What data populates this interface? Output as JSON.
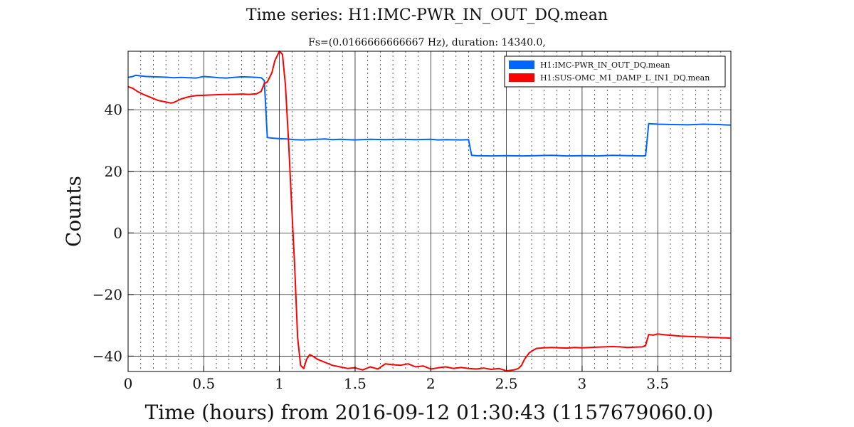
{
  "chart_data": {
    "type": "line",
    "title": "Time series:  H1:IMC-PWR_IN_OUT_DQ.mean",
    "subtitle": "Fs=(0.0166666666667 Hz), duration: 14340.0,",
    "xlabel": "Time (hours) from 2016-09-12 01:30:43 (1157679060.0)",
    "ylabel": "Counts",
    "xlim": [
      0,
      3.9833
    ],
    "ylim": [
      -45,
      59
    ],
    "x_ticks": [
      0,
      0.5,
      1,
      1.5,
      2,
      2.5,
      3,
      3.5
    ],
    "x_tick_labels": [
      "0",
      "0.5",
      "1",
      "1.5",
      "2",
      "2.5",
      "3",
      "3.5"
    ],
    "y_ticks": [
      -40,
      -20,
      0,
      20,
      40
    ],
    "y_tick_labels": [
      "−40",
      "−20",
      "0",
      "20",
      "40"
    ],
    "grid": true,
    "legend_position": "top-right",
    "series": [
      {
        "name": "H1:IMC-PWR_IN_OUT_DQ.mean",
        "color": "#0066ff",
        "x": [
          0,
          0.03,
          0.05,
          0.08,
          0.12,
          0.17,
          0.22,
          0.27,
          0.3,
          0.35,
          0.4,
          0.45,
          0.48,
          0.5,
          0.55,
          0.6,
          0.65,
          0.7,
          0.75,
          0.8,
          0.85,
          0.88,
          0.9,
          0.92,
          0.95,
          1.0,
          1.05,
          1.1,
          1.15,
          1.2,
          1.25,
          1.3,
          1.35,
          1.4,
          1.5,
          1.6,
          1.7,
          1.8,
          1.9,
          2.0,
          2.05,
          2.1,
          2.2,
          2.25,
          2.27,
          2.3,
          2.4,
          2.5,
          2.6,
          2.7,
          2.8,
          2.9,
          3.0,
          3.1,
          3.2,
          3.3,
          3.4,
          3.42,
          3.44,
          3.5,
          3.6,
          3.7,
          3.8,
          3.9,
          3.98
        ],
        "y": [
          50.5,
          50.8,
          51.2,
          51.0,
          50.8,
          50.7,
          50.6,
          50.5,
          50.4,
          50.5,
          50.4,
          50.3,
          50.6,
          50.8,
          50.6,
          50.4,
          50.3,
          50.5,
          50.7,
          50.6,
          50.5,
          50.4,
          49.5,
          31.0,
          30.8,
          30.6,
          30.5,
          30.3,
          30.2,
          30.3,
          30.4,
          30.5,
          30.3,
          30.4,
          30.2,
          30.4,
          30.3,
          30.4,
          30.3,
          30.4,
          30.2,
          30.3,
          30.2,
          30.3,
          25.2,
          25.1,
          25.0,
          25.1,
          25.0,
          25.1,
          25.2,
          25.0,
          25.1,
          25.0,
          25.2,
          25.1,
          25.0,
          25.1,
          35.5,
          35.3,
          35.2,
          35.1,
          35.3,
          35.2,
          35.0
        ]
      },
      {
        "name": "H1:SUS-OMC_M1_DAMP_L_IN1_DQ.mean",
        "color": "#ff0000",
        "x": [
          0,
          0.03,
          0.06,
          0.1,
          0.15,
          0.2,
          0.25,
          0.28,
          0.3,
          0.32,
          0.35,
          0.4,
          0.45,
          0.5,
          0.55,
          0.6,
          0.65,
          0.7,
          0.75,
          0.8,
          0.85,
          0.88,
          0.9,
          0.92,
          0.95,
          0.97,
          1.0,
          1.02,
          1.04,
          1.06,
          1.08,
          1.1,
          1.12,
          1.14,
          1.16,
          1.18,
          1.2,
          1.22,
          1.25,
          1.3,
          1.35,
          1.4,
          1.45,
          1.5,
          1.55,
          1.6,
          1.65,
          1.7,
          1.75,
          1.8,
          1.85,
          1.9,
          1.95,
          2.0,
          2.05,
          2.1,
          2.15,
          2.2,
          2.25,
          2.3,
          2.35,
          2.4,
          2.45,
          2.5,
          2.55,
          2.58,
          2.6,
          2.62,
          2.65,
          2.68,
          2.7,
          2.75,
          2.8,
          2.85,
          2.9,
          2.95,
          3.0,
          3.05,
          3.1,
          3.15,
          3.2,
          3.25,
          3.3,
          3.35,
          3.4,
          3.42,
          3.44,
          3.47,
          3.5,
          3.55,
          3.6,
          3.65,
          3.7,
          3.75,
          3.8,
          3.85,
          3.9,
          3.95,
          3.98
        ],
        "y": [
          47.5,
          47.0,
          46.0,
          45.0,
          44.0,
          43.0,
          42.5,
          42.2,
          42.3,
          42.8,
          43.5,
          44.2,
          44.6,
          44.7,
          44.8,
          44.9,
          45.0,
          45.0,
          45.1,
          45.0,
          45.2,
          46.0,
          48.5,
          49.0,
          52.0,
          56.0,
          59.0,
          58.0,
          48.0,
          30.0,
          10.0,
          -10.0,
          -34.0,
          -43.0,
          -44.0,
          -41.0,
          -39.5,
          -40.0,
          -41.0,
          -42.0,
          -43.0,
          -43.5,
          -44.0,
          -43.8,
          -44.5,
          -43.5,
          -44.2,
          -42.5,
          -42.8,
          -43.0,
          -42.5,
          -43.5,
          -43.2,
          -44.2,
          -43.8,
          -43.5,
          -44.0,
          -43.7,
          -44.0,
          -44.2,
          -43.9,
          -44.3,
          -44.0,
          -44.8,
          -44.5,
          -44.0,
          -43.0,
          -41.0,
          -39.0,
          -38.0,
          -37.5,
          -37.3,
          -37.2,
          -37.3,
          -37.4,
          -37.2,
          -37.3,
          -37.2,
          -37.1,
          -37.0,
          -36.9,
          -37.0,
          -37.2,
          -37.1,
          -37.0,
          -36.5,
          -33.0,
          -33.2,
          -32.8,
          -33.1,
          -33.3,
          -33.5,
          -33.6,
          -33.7,
          -33.8,
          -33.9,
          -34.0,
          -34.1,
          -34.2
        ]
      }
    ]
  }
}
